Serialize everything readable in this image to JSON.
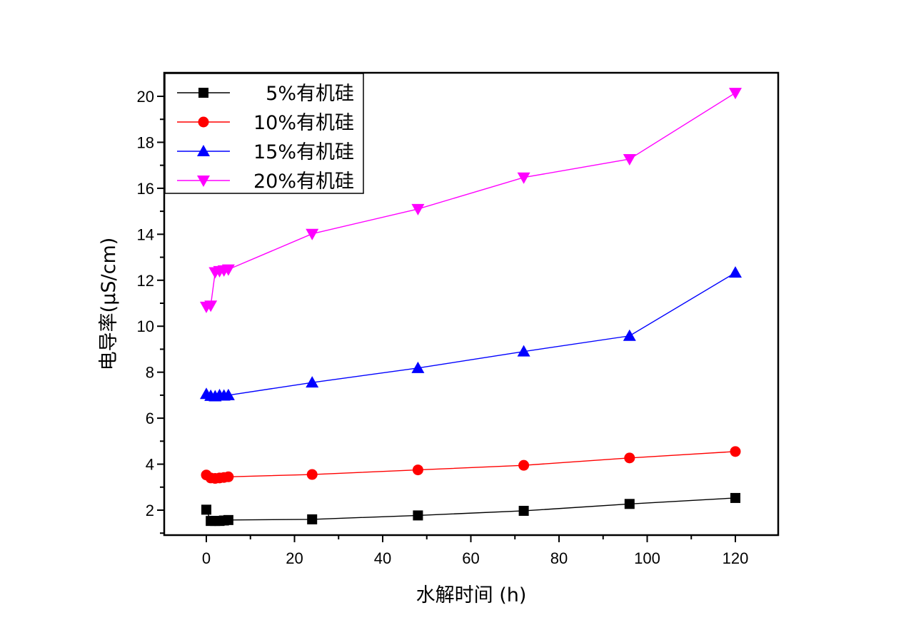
{
  "chart_data": {
    "type": "line",
    "title": "",
    "xlabel": "水解时间 (h)",
    "ylabel": "电导率(μS/cm)",
    "xlim": [
      -10,
      130
    ],
    "ylim": [
      1,
      21
    ],
    "xticks": [
      0,
      20,
      40,
      60,
      80,
      100,
      120
    ],
    "xtick_labels": [
      "0",
      "20",
      "40",
      "60",
      "80",
      "100",
      "120"
    ],
    "yticks": [
      2,
      4,
      6,
      8,
      10,
      12,
      14,
      16,
      18,
      20
    ],
    "ytick_labels": [
      "2",
      "4",
      "6",
      "8",
      "10",
      "12",
      "14",
      "16",
      "18",
      "20"
    ],
    "grid": false,
    "legend_position": "top-left",
    "x": [
      0,
      1,
      2,
      3,
      4,
      5,
      24,
      48,
      72,
      96,
      120
    ],
    "series": [
      {
        "name": "5%有机硅",
        "color": "#000000",
        "marker": "square",
        "values": [
          2.02,
          1.53,
          1.53,
          1.53,
          1.55,
          1.57,
          1.6,
          1.77,
          1.97,
          2.27,
          2.53
        ]
      },
      {
        "name": "10%有机硅",
        "color": "#ff0000",
        "marker": "circle",
        "values": [
          3.53,
          3.4,
          3.38,
          3.4,
          3.42,
          3.45,
          3.55,
          3.75,
          3.95,
          4.27,
          4.55
        ]
      },
      {
        "name": "15%有机硅",
        "color": "#0000ff",
        "marker": "triangle-up",
        "values": [
          7.05,
          6.97,
          6.95,
          7.0,
          6.98,
          7.0,
          7.55,
          8.18,
          8.9,
          9.58,
          12.33
        ]
      },
      {
        "name": "20%有机硅",
        "color": "#ff00ff",
        "marker": "triangle-down",
        "values": [
          10.85,
          10.9,
          12.35,
          12.4,
          12.43,
          12.47,
          14.02,
          15.1,
          16.47,
          17.27,
          20.15
        ]
      }
    ]
  }
}
